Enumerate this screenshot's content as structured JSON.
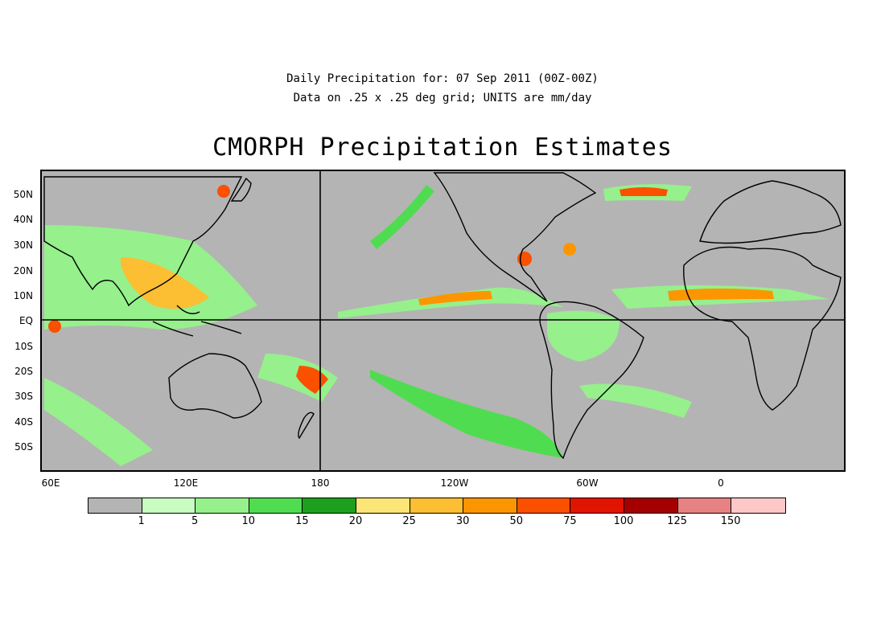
{
  "header": {
    "line1": "Daily Precipitation for: 07 Sep 2011 (00Z-00Z)",
    "line2": "Data on .25 x .25 deg grid; UNITS are mm/day",
    "title": "CMORPH Precipitation Estimates"
  },
  "map": {
    "lat_labels": [
      "50N",
      "40N",
      "30N",
      "20N",
      "10N",
      "EQ",
      "10S",
      "20S",
      "30S",
      "40S",
      "50S"
    ],
    "lon_labels": [
      "60E",
      "120E",
      "180",
      "120W",
      "60W",
      "0"
    ],
    "ocean_color": "#b4b4b4",
    "coastline_color": "#000000"
  },
  "colorbar": {
    "colors": [
      "#b4b4b4",
      "#c8fcc0",
      "#96f08c",
      "#50dc50",
      "#1ea01e",
      "#fce678",
      "#fcbe32",
      "#fc9600",
      "#fa5000",
      "#e11400",
      "#a50000",
      "#e68282",
      "#fcc8c8"
    ],
    "labels": [
      "1",
      "5",
      "10",
      "15",
      "20",
      "25",
      "30",
      "50",
      "75",
      "100",
      "125",
      "150"
    ]
  }
}
